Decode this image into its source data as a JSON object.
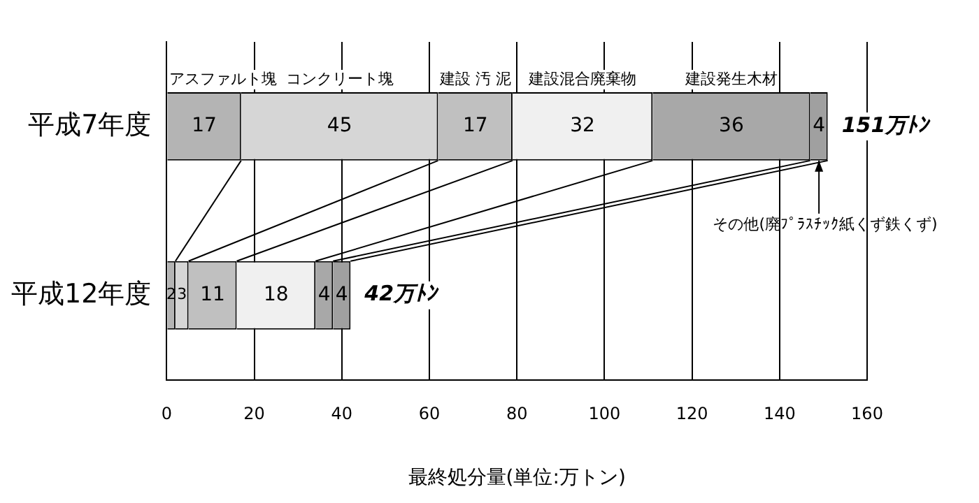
{
  "chart_data": {
    "type": "bar",
    "orientation": "horizontal",
    "stacked": true,
    "xlabel": "最終処分量(単位:万トン)",
    "categories": [
      "平成7年度",
      "平成12年度"
    ],
    "series": [
      {
        "name": "アスファルト塊",
        "color": "#b4b4b4",
        "values": [
          17,
          2
        ]
      },
      {
        "name": "コンクリート塊",
        "color": "#d6d6d6",
        "values": [
          45,
          3
        ]
      },
      {
        "name": "建設 汚 泥",
        "color": "#c0c0c0",
        "values": [
          17,
          11
        ]
      },
      {
        "name": "建設混合廃棄物",
        "color": "#f0f0f0",
        "values": [
          32,
          18
        ]
      },
      {
        "name": "建設発生木材",
        "color": "#a8a8a8",
        "values": [
          36,
          4
        ]
      },
      {
        "name": "その他(廃ﾌﾟﾗｽﾁｯｸ紙くず鉄くず)",
        "color": "#a0a0a0",
        "values": [
          4,
          4
        ]
      }
    ],
    "totals": [
      "151万ﾄﾝ",
      "42万ﾄﾝ"
    ],
    "data_labels": true,
    "xlim": [
      0,
      160
    ],
    "xticks": [
      0,
      20,
      40,
      60,
      80,
      100,
      120,
      140,
      160
    ],
    "grid": "x",
    "legend": false
  }
}
